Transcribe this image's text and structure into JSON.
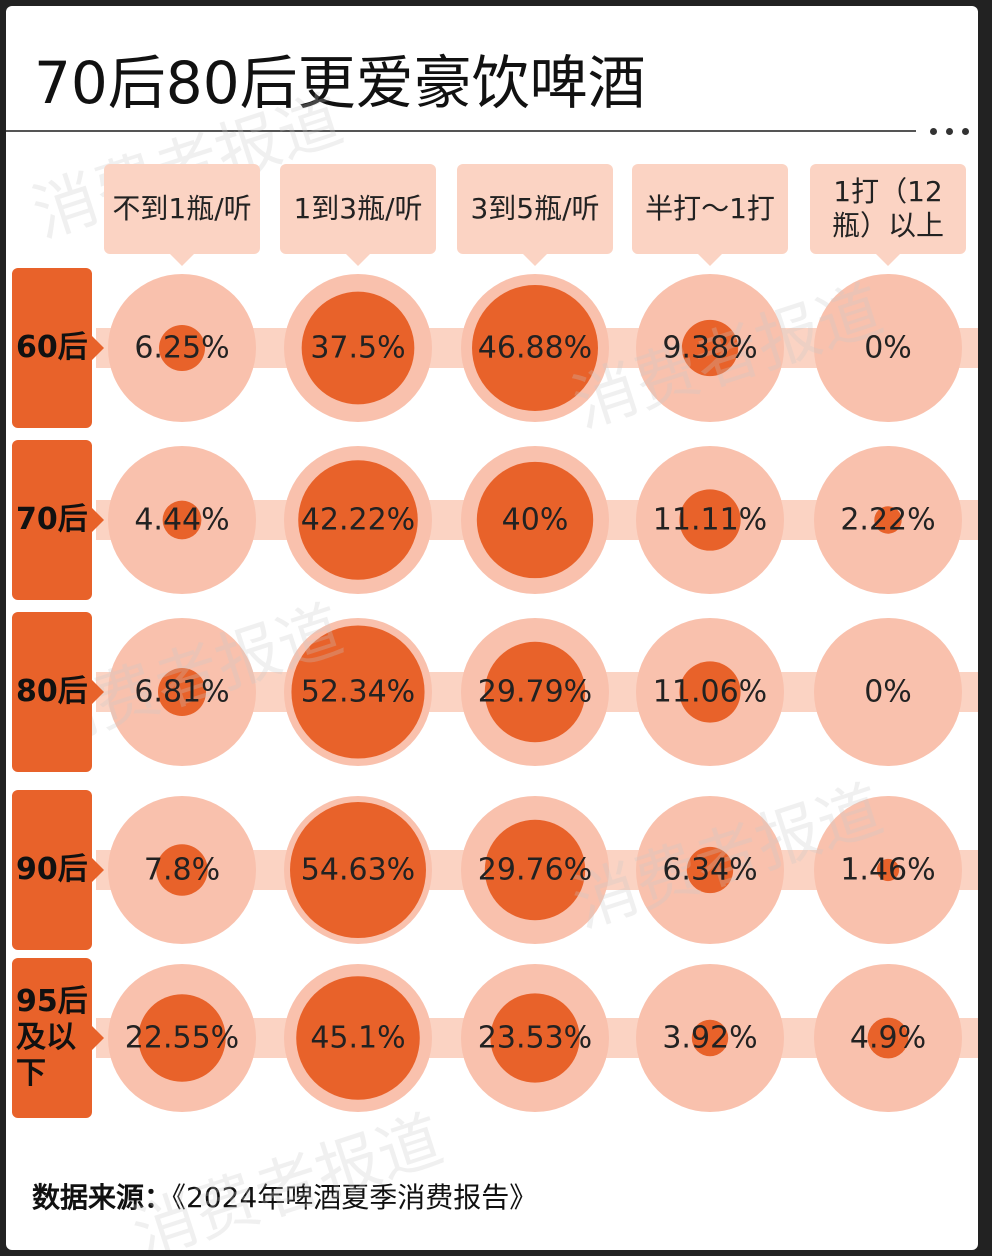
{
  "title": "70后80后更爱豪饮啤酒",
  "watermark": "消费者报道",
  "chart_data": {
    "type": "bubble",
    "categories": [
      "不到1瓶/听",
      "1到3瓶/听",
      "3到5瓶/听",
      "半打～1打",
      "1打（12瓶）以上"
    ],
    "series": [
      {
        "name": "60后",
        "values": [
          6.25,
          37.5,
          46.88,
          9.38,
          0
        ],
        "value_labels": [
          "6.25%",
          "37.5%",
          "46.88%",
          "9.38%",
          "0%"
        ]
      },
      {
        "name": "70后",
        "values": [
          4.44,
          42.22,
          40,
          11.11,
          2.22
        ],
        "value_labels": [
          "4.44%",
          "42.22%",
          "40%",
          "11.11%",
          "2.22%"
        ]
      },
      {
        "name": "80后",
        "values": [
          6.81,
          52.34,
          29.79,
          11.06,
          0
        ],
        "value_labels": [
          "6.81%",
          "52.34%",
          "29.79%",
          "11.06%",
          "0%"
        ]
      },
      {
        "name": "90后",
        "values": [
          7.8,
          54.63,
          29.76,
          6.34,
          1.46
        ],
        "value_labels": [
          "7.8%",
          "54.63%",
          "29.76%",
          "6.34%",
          "1.46%"
        ]
      },
      {
        "name": "95后及以下",
        "values": [
          22.55,
          45.1,
          23.53,
          3.92,
          4.9
        ],
        "value_labels": [
          "22.55%",
          "45.1%",
          "23.53%",
          "3.92%",
          "4.9%"
        ]
      }
    ],
    "color": "#e8622a"
  },
  "source_label": "数据来源：",
  "source": "《2024年啤酒夏季消费报告》"
}
